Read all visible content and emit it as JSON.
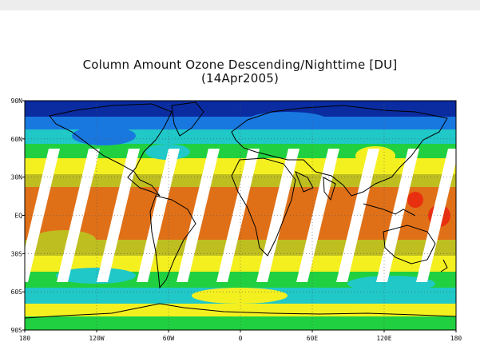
{
  "title": "Column Amount Ozone Descending/Nighttime [DU]",
  "subtitle": "(14Apr2005)",
  "map": {
    "projection": "equirectangular",
    "lon_range": [
      -180,
      180
    ],
    "lat_range": [
      -90,
      90
    ],
    "lat_labels": [
      "90N",
      "60N",
      "30N",
      "EQ",
      "30S",
      "60S",
      "90S"
    ],
    "lon_labels": [
      "180",
      "120W",
      "60W",
      "0",
      "60E",
      "120E",
      "180"
    ],
    "gridlines": "dotted",
    "swath_gaps": "white diagonal stripes (no data between orbit tracks)"
  },
  "colors": {
    "ozone_low": "#e07018",
    "ozone_mid_low": "#bfbe20",
    "ozone_mid": "#f4f020",
    "ozone_mid_high": "#20d040",
    "ozone_high": "#20c8c8",
    "ozone_very_high": "#1878e0",
    "ozone_max": "#0a2ca0",
    "coastline": "#000000"
  }
}
